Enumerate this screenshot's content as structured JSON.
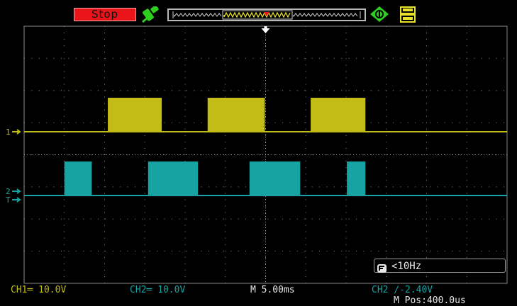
{
  "status": {
    "run_state": "Stop"
  },
  "icons": {
    "probe": "probe-icon",
    "save": "save-icon",
    "usb": "usb-icon",
    "trigger_position": "trigger-position-marker-icon"
  },
  "channels": [
    {
      "id": "ch1",
      "marker": "1",
      "color": "#c4bc16",
      "coupling": "DC",
      "scale_label": "CH1═ 10.0V"
    },
    {
      "id": "ch2",
      "marker": "2",
      "color": "#17a3a1",
      "coupling": "DC",
      "scale_label": "CH2═ 10.0V"
    }
  ],
  "timebase": {
    "label": "M 5.00ms",
    "position_label": "M Pos:400.0us"
  },
  "trigger": {
    "label": "CH2 ∕-2.40V",
    "marker": "T",
    "frequency_label": "<10Hz"
  },
  "waveforms": {
    "time_unit": "ms",
    "ch1_high_intervals_ms": [
      [
        -19.6,
        -12.9
      ],
      [
        -7.2,
        -0.1
      ],
      [
        5.6,
        12.4
      ]
    ],
    "ch2_high_intervals_ms": [
      [
        -25.0,
        -21.6
      ],
      [
        -14.6,
        -8.4
      ],
      [
        -2.0,
        4.3
      ],
      [
        10.1,
        12.4
      ]
    ]
  },
  "colors": {
    "background": "#000000",
    "grid": "#8a8a8a",
    "stop_red": "#e8141a",
    "accent_green": "#2fcf1f",
    "accent_yellow": "#e8e02a",
    "ch1_yellow": "#c4bc16",
    "ch2_cyan": "#17a3a1"
  }
}
